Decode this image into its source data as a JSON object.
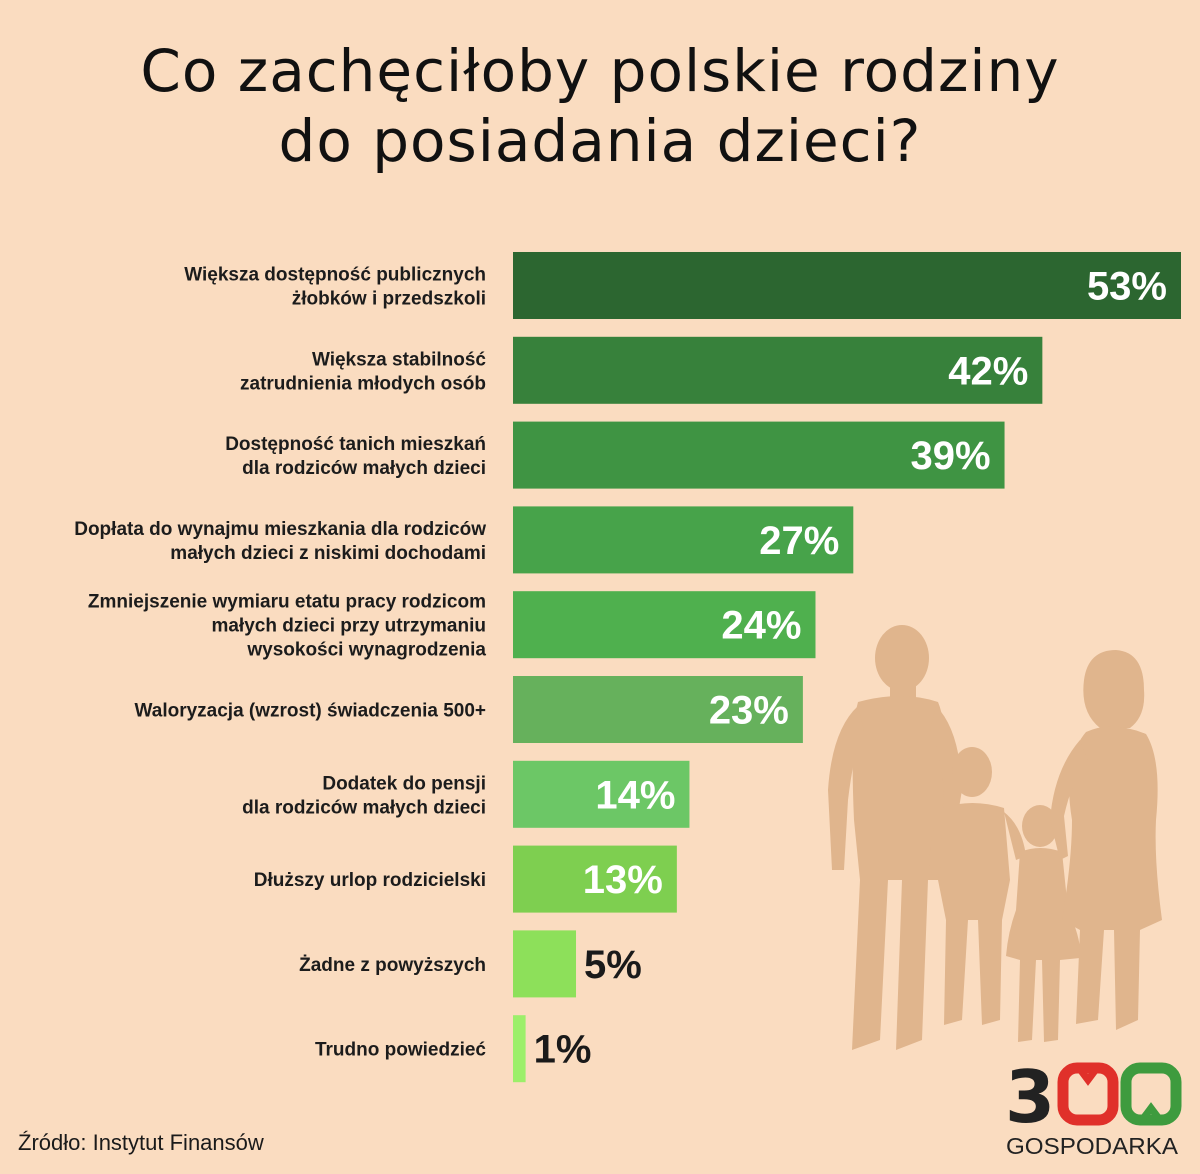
{
  "title": {
    "line1": "Co zachęciłoby polskie rodziny",
    "line2": "do posiadania dzieci?"
  },
  "chart_data": {
    "type": "bar",
    "orientation": "horizontal",
    "title": "Co zachęciłoby polskie rodziny do posiadania dzieci?",
    "value_suffix": "%",
    "xlim": [
      0,
      53
    ],
    "grid": false,
    "legend": "none",
    "categories": [
      [
        "Większa dostępność publicznych",
        "żłobków i przedszkoli"
      ],
      [
        "Większa stabilność",
        "zatrudnienia młodych osób"
      ],
      [
        "Dostępność tanich mieszkań",
        "dla rodziców małych dzieci"
      ],
      [
        "Dopłata do wynajmu mieszkania dla rodziców",
        "małych dzieci z niskimi dochodami"
      ],
      [
        "Zmniejszenie wymiaru etatu pracy rodzicom",
        "małych dzieci przy utrzymaniu",
        "wysokości wynagrodzenia"
      ],
      [
        "Waloryzacja (wzrost) świadczenia 500+"
      ],
      [
        "Dodatek do pensji",
        "dla rodziców małych dzieci"
      ],
      [
        "Dłuższy urlop rodzicielski"
      ],
      [
        "Żadne z powyższych"
      ],
      [
        "Trudno powiedzieć"
      ]
    ],
    "values": [
      53,
      42,
      39,
      27,
      24,
      23,
      14,
      13,
      5,
      1
    ],
    "bar_colors": [
      "#2c6630",
      "#37813b",
      "#3f9443",
      "#47a34a",
      "#4fb04e",
      "#66b15c",
      "#6cc766",
      "#7ecf50",
      "#8de05a",
      "#9cef6a"
    ]
  },
  "colors": {
    "background": "#fadcc0",
    "silhouette": "#e0b58d",
    "label_light": "#ffffff",
    "label_dark": "#1a1a1a",
    "logo_red": "#e0302a",
    "logo_green": "#3e9b3e",
    "logo_dark": "#222222"
  },
  "logo": {
    "number": "300",
    "text": "GOSPODARKA"
  },
  "source": "Źródło: Instytut Finansów",
  "icons": [
    "family-silhouette-icon"
  ]
}
